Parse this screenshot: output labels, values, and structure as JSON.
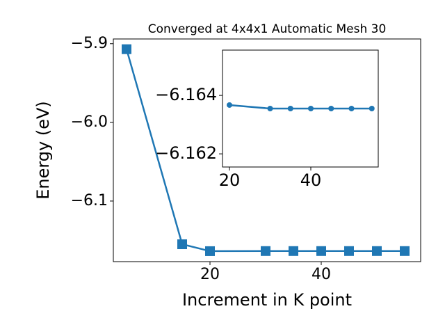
{
  "chart_data": [
    {
      "type": "line",
      "title": "Converged at 4x4x1 Automatic Mesh 30",
      "x_label": "Increment in K point",
      "y_label": "Energy (eV)",
      "x": [
        5,
        15,
        20,
        30,
        35,
        40,
        45,
        50,
        55
      ],
      "series": [
        {
          "color": "#1f77b4",
          "marker": "square",
          "values": [
            -5.907,
            -6.1549,
            -6.16367,
            -6.16355,
            -6.16355,
            -6.16355,
            -6.16355,
            -6.16355,
            -6.16355
          ]
        }
      ],
      "xlim": [
        2.625,
        57.875
      ],
      "ylim": [
        -6.177,
        -5.894
      ],
      "xticks": [
        20,
        40
      ],
      "yticks": [
        {
          "value": -5.9,
          "label": "−5.9"
        },
        {
          "value": -6.0,
          "label": "−6.0"
        },
        {
          "value": -6.1,
          "label": "−6.1"
        }
      ]
    },
    {
      "type": "line",
      "inset": true,
      "x": [
        20,
        30,
        35,
        40,
        45,
        50,
        55
      ],
      "series": [
        {
          "color": "#1f77b4",
          "marker": "circle",
          "values": [
            -6.16367,
            -6.16355,
            -6.16355,
            -6.16355,
            -6.16355,
            -6.16355,
            -6.16355
          ]
        }
      ],
      "xlim": [
        18.29,
        56.58
      ],
      "ylim": [
        -6.16155,
        -6.16555
      ],
      "xticks": [
        20,
        40
      ],
      "yticks": [
        {
          "value": -6.164,
          "label": "−6.164"
        },
        {
          "value": -6.162,
          "label": "−6.162"
        }
      ]
    }
  ]
}
